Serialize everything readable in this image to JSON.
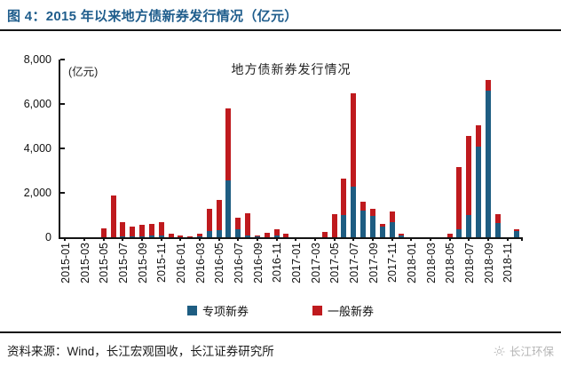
{
  "figure": {
    "title": "图 4：2015 年以来地方债新券发行情况（亿元）"
  },
  "chart_data": {
    "type": "bar",
    "stacked": true,
    "title": "地方债新券发行情况",
    "unit_label": "(亿元)",
    "ylabel": "",
    "xlabel": "",
    "ylim": [
      0,
      8000
    ],
    "y_ticks": [
      "8,000",
      "6,000",
      "4,000",
      "2,000",
      "0"
    ],
    "x_label_every_n_months": 2,
    "legend_position": "bottom",
    "grid": false,
    "x": [
      "2015-01",
      "2015-02",
      "2015-03",
      "2015-04",
      "2015-05",
      "2015-06",
      "2015-07",
      "2015-08",
      "2015-09",
      "2015-10",
      "2015-11",
      "2015-12",
      "2016-01",
      "2016-02",
      "2016-03",
      "2016-04",
      "2016-05",
      "2016-06",
      "2016-07",
      "2016-08",
      "2016-09",
      "2016-10",
      "2016-11",
      "2016-12",
      "2017-01",
      "2017-02",
      "2017-03",
      "2017-04",
      "2017-05",
      "2017-06",
      "2017-07",
      "2017-08",
      "2017-09",
      "2017-10",
      "2017-11",
      "2017-12",
      "2018-01",
      "2018-02",
      "2018-03",
      "2018-04",
      "2018-05",
      "2018-06",
      "2018-07",
      "2018-08",
      "2018-09",
      "2018-10",
      "2018-11",
      "2018-12"
    ],
    "series": [
      {
        "name": "专项新券",
        "color": "#1e5d82",
        "values": [
          0,
          0,
          0,
          0,
          0,
          0,
          50,
          50,
          60,
          80,
          100,
          0,
          0,
          0,
          50,
          280,
          330,
          2550,
          350,
          100,
          50,
          0,
          80,
          0,
          0,
          0,
          0,
          0,
          0,
          1000,
          2300,
          1200,
          950,
          500,
          700,
          100,
          0,
          0,
          0,
          0,
          0,
          350,
          1000,
          4100,
          6600,
          650,
          0,
          280
        ]
      },
      {
        "name": "一般新券",
        "color": "#bf1a1e",
        "values": [
          0,
          0,
          0,
          0,
          400,
          1870,
          650,
          450,
          490,
          540,
          600,
          160,
          100,
          60,
          100,
          1020,
          1370,
          3250,
          550,
          1000,
          50,
          200,
          270,
          150,
          0,
          0,
          0,
          230,
          1050,
          1650,
          4200,
          400,
          350,
          100,
          450,
          60,
          0,
          0,
          0,
          0,
          160,
          2800,
          3550,
          950,
          500,
          400,
          0,
          90
        ]
      }
    ]
  },
  "footer": {
    "source": "资料来源：Wind，长江宏观固收，长江证券研究所",
    "watermark": "长江环保"
  }
}
